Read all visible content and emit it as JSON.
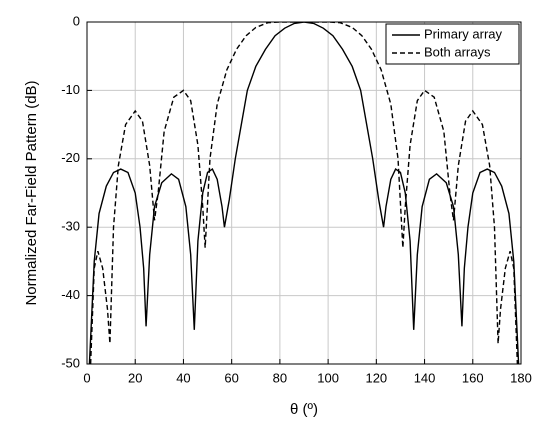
{
  "chart_data": {
    "type": "line",
    "xlabel": "θ (º)",
    "ylabel": "Normalized Far-Field Pattern (dB)",
    "xlim": [
      0,
      180
    ],
    "xticks": [
      0,
      20,
      40,
      60,
      80,
      100,
      120,
      140,
      160,
      180
    ],
    "ylim": [
      -50,
      0
    ],
    "yticks": [
      0,
      -10,
      -20,
      -30,
      -40,
      -50
    ],
    "grid": true,
    "legend": "upper right",
    "series": [
      {
        "name": "Primary array",
        "color": "#000000",
        "dash": "solid",
        "x": [
          1,
          3,
          5,
          8,
          11,
          14,
          17,
          20,
          22,
          23.5,
          24.5,
          26,
          28,
          31,
          35,
          38,
          41,
          43,
          44.5,
          46,
          48,
          50,
          52,
          54,
          56,
          57,
          59,
          61.5,
          66.5,
          70,
          74,
          78,
          82,
          86,
          90,
          94,
          98,
          102,
          106,
          110,
          113.5,
          118.5,
          121,
          123,
          124,
          126,
          128,
          130,
          132,
          134,
          135.5,
          137,
          139,
          142,
          145,
          149,
          152,
          154,
          155.5,
          156.5,
          158,
          160,
          163,
          166,
          169,
          172,
          175,
          177,
          179
        ],
        "values": [
          -50,
          -35,
          -28,
          -24,
          -22,
          -21.5,
          -22,
          -25,
          -30,
          -36,
          -44.5,
          -34,
          -27,
          -23.5,
          -22.2,
          -23,
          -27,
          -34,
          -45,
          -32,
          -25,
          -22,
          -21.5,
          -23,
          -27,
          -30,
          -26,
          -20,
          -10,
          -6.5,
          -4,
          -2,
          -0.9,
          -0.2,
          0,
          -0.2,
          -0.9,
          -2,
          -4,
          -6.5,
          -10,
          -20,
          -26,
          -30,
          -27,
          -23,
          -21.5,
          -22,
          -25,
          -32,
          -45,
          -34,
          -27,
          -23,
          -22.2,
          -23.5,
          -27,
          -34,
          -44.5,
          -36,
          -30,
          -25,
          -22,
          -21.5,
          -22,
          -24,
          -28,
          -35,
          -50
        ]
      },
      {
        "name": "Both arrays",
        "color": "#000000",
        "dash": "dashed",
        "x": [
          1.5,
          3,
          4.5,
          6.5,
          8.5,
          9.5,
          11,
          13,
          16,
          20,
          23,
          26,
          28,
          29.5,
          32,
          36,
          40,
          43,
          46,
          48,
          49,
          51,
          54,
          58,
          62,
          66,
          70,
          75,
          80,
          85,
          90,
          95,
          100,
          105,
          110,
          114,
          118,
          122,
          126,
          129,
          131,
          132,
          134,
          137,
          140,
          144,
          148,
          150.5,
          152,
          154,
          157,
          160,
          164,
          167,
          169,
          170.5,
          171.5,
          173.5,
          175.5,
          177,
          178.5
        ],
        "values": [
          -50,
          -36,
          -33.5,
          -36,
          -42,
          -47,
          -30,
          -21,
          -15,
          -13,
          -14.5,
          -21,
          -29,
          -25,
          -16,
          -11,
          -10,
          -11.5,
          -18,
          -27,
          -33,
          -20,
          -12,
          -7,
          -4,
          -2,
          -0.8,
          -0.1,
          0,
          0,
          0,
          0,
          0,
          -0.1,
          -0.8,
          -2,
          -4,
          -7,
          -12,
          -20,
          -33,
          -27,
          -18,
          -11.5,
          -10,
          -11,
          -16,
          -25,
          -29,
          -21,
          -14.5,
          -13,
          -15,
          -21,
          -30,
          -47,
          -42,
          -36,
          -33.5,
          -36,
          -50
        ]
      }
    ]
  }
}
